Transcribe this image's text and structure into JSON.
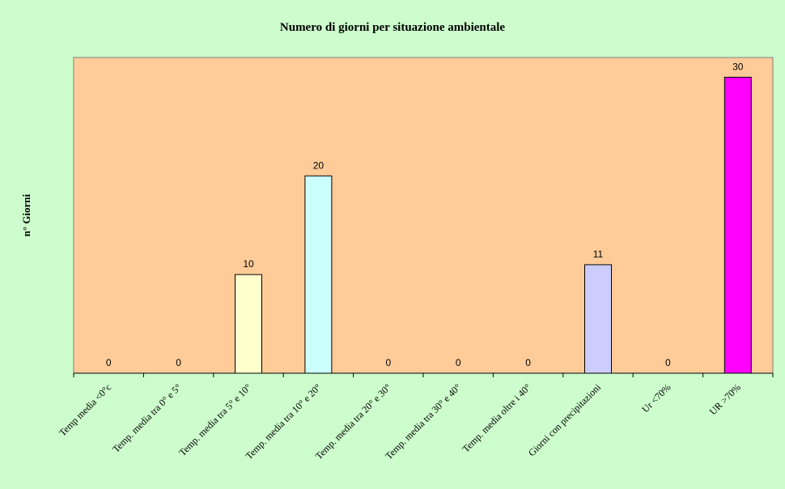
{
  "chart_data": {
    "type": "bar",
    "title": "Numero di giorni per situazione ambientale",
    "xlabel": "",
    "ylabel": "n° Giorni",
    "categories": [
      "Temp media <0°c",
      "Temp. media tra 0° e 5°",
      "Temp. media tra 5° e 10°",
      "Temp. media tra 10° e 20°",
      "Temp. media tra 20° e 30°",
      "Temp. media tra 30° e 40°",
      "Temp. media oltre i 40°",
      "Giorni con precipitazioni",
      "Ur <70%",
      "UR >70%"
    ],
    "values": [
      0,
      0,
      10,
      20,
      0,
      0,
      0,
      11,
      0,
      30
    ],
    "bar_colors": [
      "#ffffcc",
      "#ffffcc",
      "#ffffcc",
      "#ccffff",
      "#ccffff",
      "#ccffff",
      "#ccffff",
      "#ccccff",
      "#ff00ff",
      "#ff00ff"
    ],
    "data_labels": [
      "0",
      "0",
      "10",
      "20",
      "0",
      "0",
      "0",
      "11",
      "0",
      "30"
    ],
    "ylim": [
      0,
      32
    ],
    "grid": false,
    "legend": "none",
    "plot_background": "#ffcc99",
    "figure_background": "#ccffcc"
  }
}
